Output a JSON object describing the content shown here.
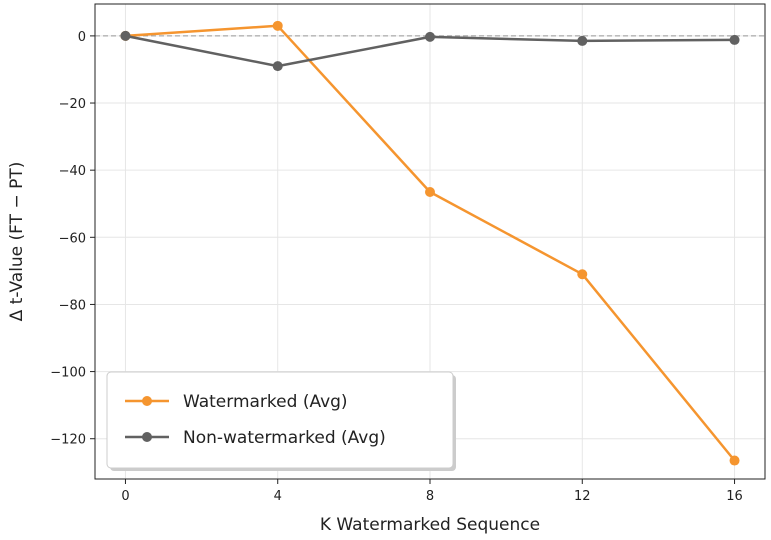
{
  "chart_data": {
    "type": "line",
    "title": "",
    "xlabel": "K Watermarked Sequence",
    "ylabel": "Δ t-Value (FT − PT)",
    "x": [
      0,
      4,
      8,
      12,
      16
    ],
    "xticks": [
      "0",
      "4",
      "8",
      "12",
      "16"
    ],
    "yticks": [
      "0",
      "−20",
      "−40",
      "−60",
      "−80",
      "−100",
      "−120"
    ],
    "ytick_values": [
      0,
      -20,
      -40,
      -60,
      -80,
      -100,
      -120
    ],
    "xlim": [
      -0.8,
      16.8
    ],
    "ylim": [
      -132,
      9.5
    ],
    "grid": true,
    "zero_reference_line": true,
    "legend_position": "lower-left",
    "series": [
      {
        "name": "Watermarked (Avg)",
        "color": "#f5952f",
        "values": [
          0,
          3,
          -46.5,
          -71,
          -126.5
        ]
      },
      {
        "name": "Non-watermarked (Avg)",
        "color": "#616161",
        "values": [
          0,
          -9,
          -0.3,
          -1.5,
          -1.2
        ]
      }
    ]
  }
}
